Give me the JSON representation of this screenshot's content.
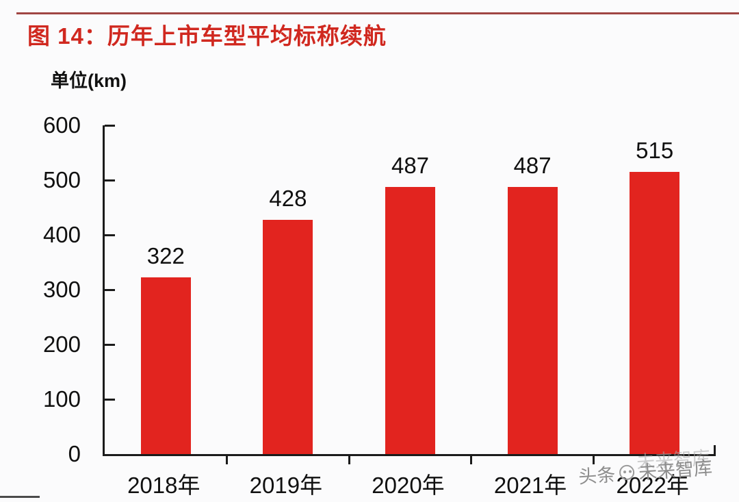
{
  "figure": {
    "title": "图 14：历年上市车型平均标称续航",
    "unit_label": "单位(km)"
  },
  "chart_data": {
    "type": "bar",
    "categories": [
      "2018年",
      "2019年",
      "2020年",
      "2021年",
      "2022年"
    ],
    "values": [
      322,
      428,
      487,
      487,
      515
    ],
    "data_labels": [
      "322",
      "428",
      "487",
      "487",
      "515"
    ],
    "title": "历年上市车型平均标称续航",
    "xlabel": "",
    "ylabel": "单位(km)",
    "ylim": [
      0,
      600
    ],
    "yticks": [
      0,
      100,
      200,
      300,
      400,
      500,
      600
    ],
    "grid": false,
    "legend": "none",
    "bar_color": "#e2241f"
  },
  "watermark": {
    "prefix": "头条",
    "logo": "panda-logo-icon",
    "suffix": "未来智库",
    "echo_text": "未来智库"
  },
  "colors": {
    "bar": "#e2241f",
    "title": "#d0281f",
    "top_rule": "#a04543",
    "axis": "#1b1b1b",
    "text": "#101010",
    "watermark": "#8e8e8e"
  }
}
